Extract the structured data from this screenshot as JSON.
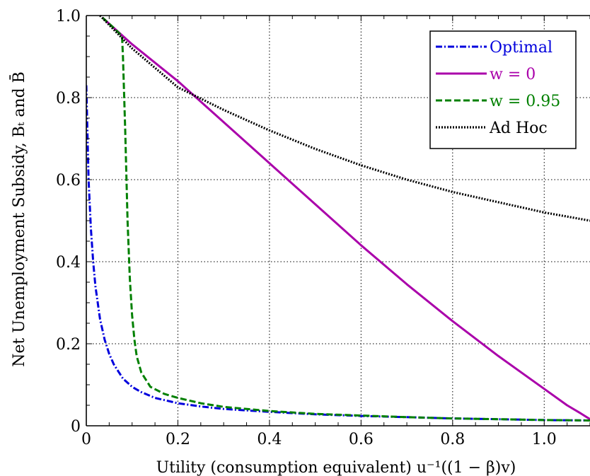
{
  "chart_data": {
    "type": "line",
    "xlabel": "Utility (consumption equivalent) u⁻¹((1 − β)v)",
    "ylabel": "Net Unemployment Subsidy, Bₜ and B̄",
    "xlim": [
      0,
      1.1
    ],
    "ylim": [
      0,
      1.0
    ],
    "xticks": [
      0,
      0.2,
      0.4,
      0.6,
      0.8,
      1.0
    ],
    "xtick_labels": [
      "0",
      "0.2",
      "0.4",
      "0.6",
      "0.8",
      "1.0"
    ],
    "yticks": [
      0,
      0.2,
      0.4,
      0.6,
      0.8,
      1.0
    ],
    "ytick_labels": [
      "0",
      "0.2",
      "0.4",
      "0.6",
      "0.8",
      "1.0"
    ],
    "grid": true,
    "legend_position": "top-right",
    "series": [
      {
        "name": "Optimal",
        "color": "#0000dd",
        "style": "dashdot",
        "x": [
          0.0,
          0.005,
          0.01,
          0.015,
          0.02,
          0.03,
          0.04,
          0.05,
          0.06,
          0.08,
          0.1,
          0.12,
          0.15,
          0.2,
          0.25,
          0.3,
          0.4,
          0.5,
          0.6,
          0.7,
          0.8,
          0.9,
          1.0,
          1.1
        ],
        "y": [
          0.83,
          0.6,
          0.48,
          0.4,
          0.34,
          0.26,
          0.21,
          0.175,
          0.15,
          0.115,
          0.095,
          0.082,
          0.068,
          0.055,
          0.047,
          0.041,
          0.034,
          0.028,
          0.024,
          0.021,
          0.018,
          0.016,
          0.014,
          0.013
        ]
      },
      {
        "name": "w = 0",
        "color": "#aa00aa",
        "style": "solid",
        "x": [
          0.035,
          0.1,
          0.2,
          0.3,
          0.4,
          0.5,
          0.6,
          0.7,
          0.8,
          0.9,
          1.0,
          1.05,
          1.08,
          1.1
        ],
        "y": [
          0.995,
          0.93,
          0.84,
          0.74,
          0.64,
          0.54,
          0.44,
          0.345,
          0.255,
          0.17,
          0.09,
          0.05,
          0.03,
          0.016
        ]
      },
      {
        "name": "w = 0.95",
        "color": "#008000",
        "style": "dashed",
        "x": [
          0.035,
          0.06,
          0.078,
          0.08,
          0.085,
          0.09,
          0.095,
          0.1,
          0.105,
          0.11,
          0.12,
          0.14,
          0.17,
          0.2,
          0.25,
          0.3,
          0.4,
          0.5,
          0.6,
          0.7,
          0.8,
          0.9,
          1.0,
          1.1
        ],
        "y": [
          0.995,
          0.97,
          0.95,
          0.9,
          0.72,
          0.5,
          0.36,
          0.27,
          0.21,
          0.17,
          0.13,
          0.095,
          0.078,
          0.068,
          0.055,
          0.046,
          0.036,
          0.029,
          0.025,
          0.021,
          0.018,
          0.016,
          0.014,
          0.013
        ]
      },
      {
        "name": "Ad Hoc",
        "color": "#000000",
        "style": "dotted",
        "x": [
          0.03,
          0.1,
          0.2,
          0.3,
          0.4,
          0.5,
          0.6,
          0.7,
          0.8,
          0.9,
          1.0,
          1.1
        ],
        "y": [
          1.0,
          0.92,
          0.825,
          0.77,
          0.72,
          0.675,
          0.635,
          0.6,
          0.57,
          0.545,
          0.52,
          0.5
        ]
      }
    ]
  }
}
